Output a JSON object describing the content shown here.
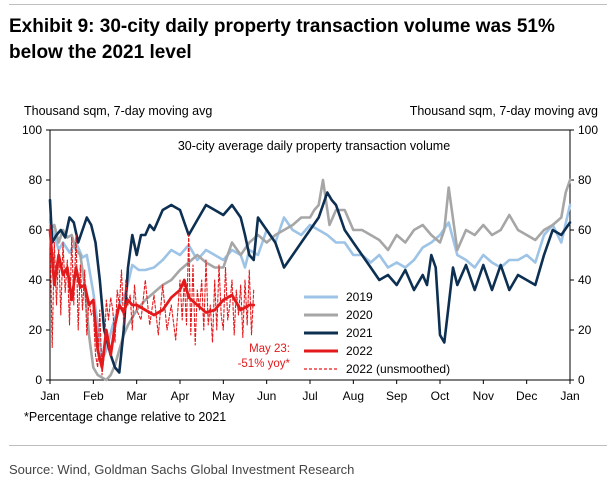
{
  "title": "Exhibit 9: 30-city daily property transaction volume was 51% below the 2021 level",
  "footnote": "*Percentage change relative to 2021",
  "source": "Source: Wind, Goldman Sachs Global Investment Research",
  "chart_data": {
    "type": "line",
    "title": "30-city average daily property transaction volume",
    "ylabel_left": "Thousand sqm, 7-day moving avg",
    "ylabel_right": "Thousand sqm, 7-day moving avg",
    "ylim": [
      0,
      100
    ],
    "yticks": [
      "0",
      "20",
      "40",
      "60",
      "80",
      "100"
    ],
    "xlim": [
      0,
      12
    ],
    "xticks": [
      "Jan",
      "Feb",
      "Mar",
      "Apr",
      "May",
      "Jun",
      "Jul",
      "Aug",
      "Sep",
      "Oct",
      "Nov",
      "Dec",
      "Jan"
    ],
    "annotation": {
      "line1": "May 23:",
      "line2": "-51% yoy*",
      "color": "#e31a1c"
    },
    "series": [
      {
        "name": "2019",
        "color": "#9dc3e6",
        "style": "solid",
        "x": [
          0,
          0.1,
          0.2,
          0.3,
          0.45,
          0.6,
          0.75,
          0.85,
          1.0,
          1.1,
          1.2,
          1.3,
          1.45,
          1.6,
          1.75,
          1.9,
          2.05,
          2.2,
          2.4,
          2.6,
          2.8,
          3.0,
          3.2,
          3.4,
          3.6,
          3.8,
          4.0,
          4.2,
          4.4,
          4.5,
          4.6,
          4.8,
          5.0,
          5.2,
          5.4,
          5.6,
          5.8,
          6.0,
          6.2,
          6.4,
          6.6,
          6.8,
          7.0,
          7.2,
          7.4,
          7.6,
          7.8,
          8.0,
          8.2,
          8.4,
          8.6,
          8.8,
          9.0,
          9.2,
          9.4,
          9.6,
          9.8,
          10.0,
          10.2,
          10.4,
          10.6,
          10.8,
          11.0,
          11.2,
          11.4,
          11.6,
          11.8,
          12.0
        ],
        "values": [
          63,
          58,
          52,
          55,
          51,
          55,
          49,
          50,
          35,
          22,
          8,
          12,
          22,
          30,
          35,
          46,
          44,
          44,
          45,
          48,
          52,
          50,
          54,
          48,
          52,
          50,
          48,
          52,
          50,
          45,
          52,
          50,
          60,
          55,
          65,
          60,
          58,
          62,
          60,
          58,
          55,
          55,
          50,
          50,
          47,
          50,
          45,
          47,
          45,
          48,
          53,
          55,
          58,
          63,
          50,
          48,
          45,
          50,
          47,
          45,
          48,
          48,
          50,
          47,
          58,
          62,
          55,
          70
        ]
      },
      {
        "name": "2020",
        "color": "#a6a6a6",
        "style": "solid",
        "x": [
          0,
          0.1,
          0.2,
          0.3,
          0.4,
          0.5,
          0.6,
          0.7,
          0.8,
          0.9,
          1.0,
          1.1,
          1.2,
          1.3,
          1.4,
          1.5,
          1.6,
          1.7,
          1.8,
          2.0,
          2.2,
          2.4,
          2.6,
          2.8,
          3.0,
          3.2,
          3.4,
          3.6,
          3.8,
          4.0,
          4.2,
          4.4,
          4.6,
          4.8,
          5.0,
          5.2,
          5.4,
          5.6,
          5.8,
          6.0,
          6.1,
          6.2,
          6.3,
          6.45,
          6.6,
          6.8,
          7.0,
          7.2,
          7.4,
          7.6,
          7.8,
          8.0,
          8.2,
          8.4,
          8.6,
          8.8,
          9.0,
          9.1,
          9.2,
          9.4,
          9.6,
          9.8,
          10.0,
          10.2,
          10.4,
          10.6,
          10.8,
          11.0,
          11.2,
          11.4,
          11.6,
          11.8,
          11.9,
          12.0
        ],
        "values": [
          60,
          62,
          55,
          60,
          57,
          58,
          52,
          50,
          38,
          18,
          5,
          2,
          1,
          0,
          2,
          6,
          12,
          18,
          22,
          28,
          32,
          35,
          38,
          40,
          44,
          47,
          50,
          47,
          45,
          45,
          55,
          50,
          55,
          58,
          55,
          58,
          60,
          62,
          65,
          65,
          68,
          70,
          80,
          62,
          68,
          68,
          60,
          60,
          58,
          56,
          52,
          58,
          55,
          60,
          62,
          58,
          55,
          60,
          77,
          52,
          60,
          58,
          62,
          58,
          60,
          66,
          60,
          58,
          56,
          60,
          62,
          65,
          75,
          80
        ]
      },
      {
        "name": "2021",
        "color": "#0c2f52",
        "style": "solid",
        "x": [
          0,
          0.05,
          0.15,
          0.25,
          0.35,
          0.45,
          0.55,
          0.65,
          0.75,
          0.85,
          0.95,
          1.05,
          1.15,
          1.25,
          1.4,
          1.5,
          1.6,
          1.7,
          1.8,
          1.9,
          2.0,
          2.1,
          2.2,
          2.3,
          2.4,
          2.6,
          2.8,
          3.0,
          3.2,
          3.4,
          3.6,
          3.8,
          4.0,
          4.2,
          4.4,
          4.5,
          4.6,
          4.7,
          4.8,
          5.0,
          5.2,
          5.4,
          5.6,
          5.8,
          6.0,
          6.2,
          6.3,
          6.4,
          6.5,
          6.6,
          6.8,
          7.0,
          7.2,
          7.4,
          7.6,
          7.8,
          8.0,
          8.2,
          8.4,
          8.6,
          8.7,
          8.8,
          8.9,
          9.0,
          9.1,
          9.2,
          9.3,
          9.4,
          9.6,
          9.8,
          10.0,
          10.2,
          10.4,
          10.6,
          10.8,
          11.0,
          11.2,
          11.4,
          11.6,
          11.8,
          12.0
        ],
        "values": [
          72,
          55,
          58,
          60,
          57,
          65,
          63,
          55,
          60,
          65,
          62,
          55,
          40,
          20,
          10,
          5,
          3,
          20,
          45,
          58,
          50,
          58,
          58,
          62,
          60,
          68,
          70,
          68,
          58,
          64,
          70,
          68,
          66,
          70,
          65,
          58,
          50,
          48,
          65,
          60,
          55,
          45,
          50,
          55,
          60,
          65,
          70,
          75,
          72,
          70,
          60,
          55,
          50,
          45,
          40,
          42,
          38,
          44,
          36,
          42,
          38,
          50,
          45,
          18,
          15,
          30,
          45,
          38,
          46,
          36,
          46,
          36,
          46,
          36,
          42,
          40,
          38,
          50,
          60,
          58,
          63
        ]
      },
      {
        "name": "2022",
        "color": "#e31a1c",
        "style": "solid",
        "x": [
          0,
          0.1,
          0.2,
          0.3,
          0.4,
          0.5,
          0.6,
          0.7,
          0.8,
          0.9,
          1.0,
          1.1,
          1.2,
          1.3,
          1.4,
          1.5,
          1.6,
          1.7,
          1.8,
          1.9,
          2.0,
          2.2,
          2.4,
          2.6,
          2.8,
          3.0,
          3.1,
          3.2,
          3.4,
          3.6,
          3.8,
          4.0,
          4.2,
          4.4,
          4.6,
          4.7
        ],
        "values": [
          60,
          38,
          50,
          42,
          45,
          32,
          45,
          37,
          38,
          30,
          32,
          12,
          5,
          20,
          10,
          22,
          30,
          27,
          32,
          30,
          30,
          28,
          26,
          28,
          33,
          36,
          40,
          33,
          30,
          27,
          28,
          32,
          34,
          28,
          30,
          30
        ]
      },
      {
        "name": "2022 (unsmoothed)",
        "color": "#e31a1c",
        "style": "dashed",
        "x": [
          0,
          0.05,
          0.1,
          0.15,
          0.2,
          0.25,
          0.3,
          0.35,
          0.4,
          0.45,
          0.5,
          0.55,
          0.6,
          0.65,
          0.7,
          0.75,
          0.8,
          0.85,
          0.9,
          0.95,
          1.0,
          1.05,
          1.1,
          1.15,
          1.2,
          1.25,
          1.3,
          1.35,
          1.4,
          1.45,
          1.5,
          1.55,
          1.6,
          1.65,
          1.7,
          1.75,
          1.8,
          1.85,
          1.9,
          1.95,
          2.0,
          2.1,
          2.2,
          2.3,
          2.4,
          2.5,
          2.6,
          2.7,
          2.8,
          2.9,
          3.0,
          3.05,
          3.1,
          3.15,
          3.2,
          3.25,
          3.3,
          3.35,
          3.4,
          3.45,
          3.5,
          3.55,
          3.6,
          3.65,
          3.7,
          3.75,
          3.8,
          3.85,
          3.9,
          3.95,
          4.0,
          4.05,
          4.1,
          4.15,
          4.2,
          4.25,
          4.3,
          4.35,
          4.4,
          4.45,
          4.5,
          4.55,
          4.6,
          4.65,
          4.7
        ],
        "values": [
          62,
          13,
          55,
          30,
          52,
          26,
          55,
          35,
          48,
          22,
          57,
          30,
          58,
          20,
          46,
          28,
          44,
          18,
          32,
          26,
          28,
          10,
          5,
          28,
          2,
          10,
          32,
          24,
          33,
          28,
          15,
          36,
          30,
          44,
          22,
          40,
          30,
          34,
          20,
          38,
          28,
          24,
          40,
          22,
          34,
          18,
          38,
          20,
          30,
          16,
          40,
          24,
          40,
          22,
          58,
          18,
          46,
          14,
          36,
          28,
          40,
          20,
          48,
          22,
          30,
          15,
          40,
          20,
          46,
          26,
          20,
          45,
          24,
          30,
          40,
          18,
          36,
          26,
          38,
          17,
          40,
          22,
          44,
          18,
          36
        ]
      }
    ]
  }
}
